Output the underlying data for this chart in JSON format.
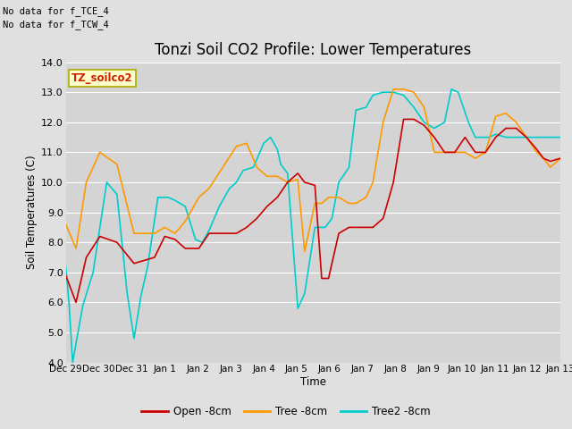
{
  "title": "Tonzi Soil CO2 Profile: Lower Temperatures",
  "ylabel": "Soil Temperatures (C)",
  "xlabel": "Time",
  "top_left_text1": "No data for f_TCE_4",
  "top_left_text2": "No data for f_TCW_4",
  "box_label": "TZ_soilco2",
  "ylim": [
    4.0,
    14.0
  ],
  "yticks": [
    4.0,
    5.0,
    6.0,
    7.0,
    8.0,
    9.0,
    10.0,
    11.0,
    12.0,
    13.0,
    14.0
  ],
  "xtick_labels": [
    "Dec 29",
    "Dec 30",
    "Dec 31",
    "Jan 1",
    "Jan 2",
    "Jan 3",
    "Jan 4",
    "Jan 5",
    "Jan 6",
    "Jan 7",
    "Jan 8",
    "Jan 9",
    "Jan 10",
    "Jan 11",
    "Jan 12",
    "Jan 13"
  ],
  "colors": {
    "open": "#cc0000",
    "tree": "#ff9900",
    "tree2": "#00cccc"
  },
  "legend_labels": [
    "Open -8cm",
    "Tree -8cm",
    "Tree2 -8cm"
  ],
  "background_color": "#e0e0e0",
  "plot_bg_color": "#d4d4d4",
  "title_fontsize": 12,
  "open_x": [
    0,
    0.3,
    0.6,
    1.0,
    1.5,
    2.0,
    2.3,
    2.6,
    2.9,
    3.2,
    3.5,
    3.9,
    4.2,
    4.6,
    5.0,
    5.3,
    5.6,
    5.9,
    6.2,
    6.5,
    6.8,
    7.0,
    7.3,
    7.5,
    7.7,
    8.0,
    8.3,
    8.5,
    8.8,
    9.0,
    9.3,
    9.6,
    9.9,
    10.2,
    10.5,
    10.8,
    11.1,
    11.4,
    11.7,
    12.0,
    12.3,
    12.6,
    12.9,
    13.2,
    13.5,
    13.8,
    14.0,
    14.2,
    14.5
  ],
  "open_y": [
    6.9,
    6.0,
    7.5,
    8.2,
    8.0,
    7.3,
    7.4,
    7.5,
    8.2,
    8.1,
    7.8,
    7.8,
    8.3,
    8.3,
    8.3,
    8.5,
    8.8,
    9.2,
    9.5,
    10.0,
    10.3,
    10.0,
    9.9,
    6.8,
    6.8,
    8.3,
    8.5,
    8.5,
    8.5,
    8.5,
    8.8,
    10.0,
    12.1,
    12.1,
    11.9,
    11.5,
    11.0,
    11.0,
    11.5,
    11.0,
    11.0,
    11.5,
    11.8,
    11.8,
    11.5,
    11.1,
    10.8,
    10.7,
    10.8
  ],
  "tree_x": [
    0,
    0.3,
    0.6,
    1.0,
    1.5,
    2.0,
    2.3,
    2.6,
    2.9,
    3.2,
    3.5,
    3.9,
    4.2,
    4.6,
    5.0,
    5.3,
    5.6,
    5.9,
    6.2,
    6.5,
    6.8,
    7.0,
    7.3,
    7.5,
    7.7,
    8.0,
    8.3,
    8.5,
    8.8,
    9.0,
    9.3,
    9.6,
    9.9,
    10.2,
    10.5,
    10.8,
    11.1,
    11.4,
    11.7,
    12.0,
    12.3,
    12.6,
    12.9,
    13.2,
    13.5,
    13.8,
    14.0,
    14.2,
    14.5
  ],
  "tree_y": [
    8.6,
    7.8,
    10.0,
    11.0,
    10.6,
    8.3,
    8.3,
    8.3,
    8.5,
    8.3,
    8.7,
    9.5,
    9.8,
    10.5,
    11.2,
    11.3,
    10.5,
    10.2,
    10.2,
    10.0,
    10.1,
    7.7,
    9.3,
    9.3,
    9.5,
    9.5,
    9.3,
    9.3,
    9.5,
    10.0,
    12.0,
    13.1,
    13.1,
    13.0,
    12.5,
    11.0,
    11.0,
    11.0,
    11.0,
    10.8,
    11.0,
    12.2,
    12.3,
    12.0,
    11.5,
    11.0,
    10.8,
    10.5,
    10.8
  ],
  "tree2_x": [
    0,
    0.1,
    0.2,
    0.5,
    0.8,
    1.2,
    1.5,
    1.8,
    2.0,
    2.2,
    2.4,
    2.7,
    3.0,
    3.2,
    3.5,
    3.8,
    4.0,
    4.2,
    4.5,
    4.8,
    5.0,
    5.2,
    5.5,
    5.8,
    6.0,
    6.2,
    6.3,
    6.5,
    6.8,
    7.0,
    7.3,
    7.6,
    7.8,
    8.0,
    8.3,
    8.5,
    8.8,
    9.0,
    9.3,
    9.6,
    9.9,
    10.2,
    10.5,
    10.8,
    11.1,
    11.3,
    11.5,
    11.8,
    12.0,
    12.2,
    12.4,
    12.6,
    12.9,
    13.2,
    13.5,
    13.8,
    14.0,
    14.2,
    14.5
  ],
  "tree2_y": [
    7.2,
    5.9,
    4.0,
    5.9,
    7.0,
    10.0,
    9.6,
    6.3,
    4.8,
    6.2,
    7.2,
    9.5,
    9.5,
    9.4,
    9.2,
    8.1,
    8.0,
    8.4,
    9.2,
    9.8,
    10.0,
    10.4,
    10.5,
    11.3,
    11.5,
    11.1,
    10.6,
    10.3,
    5.8,
    6.3,
    8.5,
    8.5,
    8.8,
    10.0,
    10.5,
    12.4,
    12.5,
    12.9,
    13.0,
    13.0,
    12.9,
    12.5,
    12.0,
    11.8,
    12.0,
    13.1,
    13.0,
    12.0,
    11.5,
    11.5,
    11.5,
    11.6,
    11.5,
    11.5,
    11.5,
    11.5,
    11.5,
    11.5,
    11.5
  ]
}
